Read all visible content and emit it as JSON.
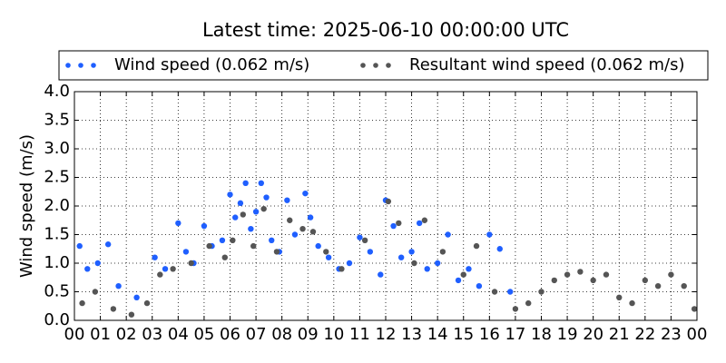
{
  "chart_data": {
    "type": "scatter",
    "title": "Latest time: 2025-06-10 00:00:00 UTC",
    "y_label": "Wind speed (m/s)",
    "xlim": [
      0,
      24
    ],
    "xticks": [
      {
        "value": 0,
        "label": "00"
      },
      {
        "value": 1,
        "label": "01"
      },
      {
        "value": 2,
        "label": "02"
      },
      {
        "value": 3,
        "label": "03"
      },
      {
        "value": 4,
        "label": "04"
      },
      {
        "value": 5,
        "label": "05"
      },
      {
        "value": 6,
        "label": "06"
      },
      {
        "value": 7,
        "label": "07"
      },
      {
        "value": 8,
        "label": "08"
      },
      {
        "value": 9,
        "label": "09"
      },
      {
        "value": 10,
        "label": "10"
      },
      {
        "value": 11,
        "label": "11"
      },
      {
        "value": 12,
        "label": "12"
      },
      {
        "value": 13,
        "label": "13"
      },
      {
        "value": 14,
        "label": "14"
      },
      {
        "value": 15,
        "label": "15"
      },
      {
        "value": 16,
        "label": "16"
      },
      {
        "value": 17,
        "label": "17"
      },
      {
        "value": 18,
        "label": "18"
      },
      {
        "value": 19,
        "label": "19"
      },
      {
        "value": 20,
        "label": "20"
      },
      {
        "value": 21,
        "label": "21"
      },
      {
        "value": 22,
        "label": "22"
      },
      {
        "value": 23,
        "label": "23"
      },
      {
        "value": 24,
        "label": "00"
      }
    ],
    "ylim": [
      0,
      4
    ],
    "yticks": [
      {
        "value": 0,
        "label": "0.0"
      },
      0.5,
      {
        "value": 1,
        "label": "1.0"
      },
      1.5,
      {
        "value": 2,
        "label": "2.0"
      },
      2.5,
      {
        "value": 3,
        "label": "3.0"
      },
      3.5,
      {
        "value": 4,
        "label": "4.0"
      }
    ],
    "grid": true,
    "series": [
      {
        "name": "Wind speed (0.062 m/s)",
        "color": "#1f5fff",
        "x": [
          0.2,
          0.5,
          0.9,
          1.3,
          1.7,
          2.4,
          3.1,
          3.5,
          4.0,
          4.3,
          4.6,
          5.0,
          5.3,
          5.7,
          6.0,
          6.2,
          6.4,
          6.6,
          6.8,
          7.0,
          7.2,
          7.4,
          7.6,
          7.9,
          8.2,
          8.5,
          8.9,
          9.1,
          9.4,
          9.8,
          10.2,
          10.6,
          11.0,
          11.4,
          11.8,
          12.0,
          12.3,
          12.6,
          13.0,
          13.3,
          13.6,
          14.0,
          14.4,
          14.8,
          15.2,
          15.6,
          16.0,
          16.4,
          16.8
        ],
        "values": [
          1.3,
          0.9,
          1.0,
          1.33,
          0.6,
          0.4,
          1.1,
          0.9,
          1.7,
          1.2,
          1.0,
          1.65,
          1.3,
          1.4,
          2.2,
          1.8,
          2.05,
          2.4,
          1.6,
          1.9,
          2.4,
          2.15,
          1.4,
          1.2,
          2.1,
          1.5,
          2.22,
          1.8,
          1.3,
          1.1,
          0.9,
          1.0,
          1.45,
          1.2,
          0.8,
          2.1,
          1.65,
          1.1,
          1.2,
          1.7,
          0.9,
          1.0,
          1.5,
          0.7,
          0.9,
          0.6,
          1.5,
          1.25,
          0.5
        ]
      },
      {
        "name": "Resultant wind speed (0.062 m/s)",
        "color": "#555555",
        "x": [
          0.3,
          0.8,
          1.5,
          2.2,
          2.8,
          3.3,
          3.8,
          4.5,
          5.2,
          5.8,
          6.1,
          6.5,
          6.9,
          7.3,
          7.8,
          8.3,
          8.8,
          9.2,
          9.7,
          10.3,
          11.2,
          12.1,
          12.5,
          13.1,
          13.5,
          14.2,
          15.0,
          15.5,
          16.2,
          17.0,
          17.5,
          18.0,
          18.5,
          19.0,
          19.5,
          20.0,
          20.5,
          21.0,
          21.5,
          22.0,
          22.5,
          23.0,
          23.5,
          23.9
        ],
        "values": [
          0.3,
          0.5,
          0.2,
          0.1,
          0.3,
          0.8,
          0.9,
          1.0,
          1.3,
          1.1,
          1.4,
          1.85,
          1.3,
          1.95,
          1.2,
          1.75,
          1.6,
          1.55,
          1.2,
          0.9,
          1.4,
          2.08,
          1.7,
          1.0,
          1.75,
          1.2,
          0.8,
          1.3,
          0.5,
          0.2,
          0.3,
          0.5,
          0.7,
          0.8,
          0.85,
          0.7,
          0.8,
          0.4,
          0.3,
          0.7,
          0.6,
          0.8,
          0.6,
          0.2
        ]
      }
    ]
  }
}
